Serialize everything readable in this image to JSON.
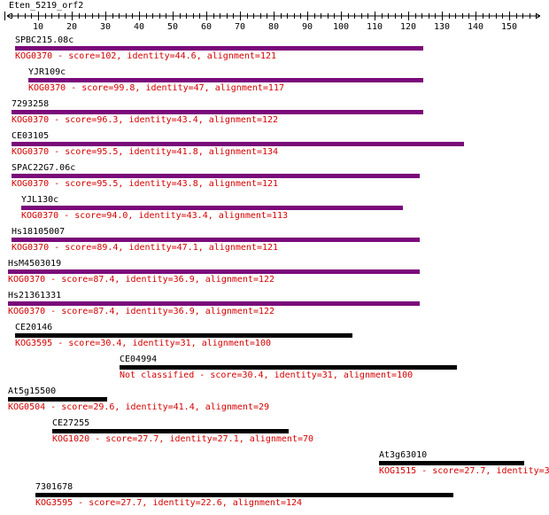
{
  "ruler": {
    "title": "Eten_5219_orf2",
    "ticks": [
      "10",
      "20",
      "30",
      "40",
      "50",
      "60",
      "70",
      "80",
      "90",
      "100",
      "110",
      "120",
      "130",
      "140",
      "150"
    ]
  },
  "colors": {
    "kog": "#7a0a7a",
    "other": "#000000",
    "annotation": "#d40000"
  },
  "hits": [
    {
      "name": "SPBC215.08c",
      "annotation": "KOG0370 - score=102, identity=44.6, alignment=121",
      "type": "kog"
    },
    {
      "name": "YJR109c",
      "annotation": "KOG0370 - score=99.8, identity=47, alignment=117",
      "type": "kog"
    },
    {
      "name": "7293258",
      "annotation": "KOG0370 - score=96.3, identity=43.4, alignment=122",
      "type": "kog"
    },
    {
      "name": "CE03105",
      "annotation": "KOG0370 - score=95.5, identity=41.8, alignment=134",
      "type": "kog"
    },
    {
      "name": "SPAC22G7.06c",
      "annotation": "KOG0370 - score=95.5, identity=43.8, alignment=121",
      "type": "kog"
    },
    {
      "name": "YJL130c",
      "annotation": "KOG0370 - score=94.0, identity=43.4, alignment=113",
      "type": "kog"
    },
    {
      "name": "Hs18105007",
      "annotation": "KOG0370 - score=89.4, identity=47.1, alignment=121",
      "type": "kog"
    },
    {
      "name": "HsM4503019",
      "annotation": "KOG0370 - score=87.4, identity=36.9, alignment=122",
      "type": "kog"
    },
    {
      "name": "Hs21361331",
      "annotation": "KOG0370 - score=87.4, identity=36.9, alignment=122",
      "type": "kog"
    },
    {
      "name": "CE20146",
      "annotation": "KOG3595 - score=30.4, identity=31, alignment=100",
      "type": "other"
    },
    {
      "name": "CE04994",
      "annotation": "Not classified - score=30.4, identity=31, alignment=100",
      "type": "other"
    },
    {
      "name": "At5g15500",
      "annotation": "KOG0504 - score=29.6, identity=41.4, alignment=29",
      "type": "other"
    },
    {
      "name": "CE27255",
      "annotation": "KOG1020 - score=27.7, identity=27.1, alignment=70",
      "type": "other"
    },
    {
      "name": "At3g63010",
      "annotation": "KOG1515 - score=27.7, identity=3",
      "type": "other"
    },
    {
      "name": "7301678",
      "annotation": "KOG3595 - score=27.7, identity=22.6, alignment=124",
      "type": "other"
    }
  ]
}
